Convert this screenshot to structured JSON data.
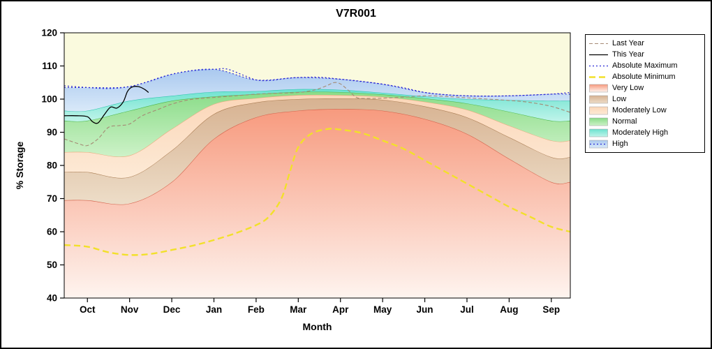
{
  "figure": {
    "border_color": "#000000",
    "background": "#ffffff"
  },
  "chart_data": {
    "type": "area",
    "title": "V7R001",
    "xlabel": "Month",
    "ylabel": "% Storage",
    "ylim": [
      40,
      120
    ],
    "yticks": [
      40,
      50,
      60,
      70,
      80,
      90,
      100,
      110,
      120
    ],
    "x_range": [
      -0.55,
      11.45
    ],
    "categories": [
      "Oct",
      "Nov",
      "Dec",
      "Jan",
      "Feb",
      "Mar",
      "Apr",
      "May",
      "Jun",
      "Jul",
      "Aug",
      "Sep"
    ],
    "plot_background": "#fafade",
    "grid": false,
    "legend_position": "outside-top-right",
    "bands": [
      {
        "label": "Very Low",
        "fill_top": "#f79a7e",
        "fill_bottom": "#fef4ef",
        "line_color": "#d4614a",
        "line_dash": "",
        "top": [
          69.5,
          68.5,
          75,
          88,
          94.5,
          96.5,
          97,
          96.5,
          94,
          89.5,
          82,
          75
        ]
      },
      {
        "label": "Low",
        "fill_top": "#d7b291",
        "fill_bottom": "#edddc8",
        "line_color": "#a97c52",
        "line_dash": "",
        "top": [
          78,
          76.5,
          84.5,
          95.5,
          99,
          100,
          100.2,
          99.8,
          97.8,
          94.5,
          88.5,
          82.5
        ]
      },
      {
        "label": "Moderately Low",
        "fill_top": "#fbd6b8",
        "fill_bottom": "#fdead6",
        "line_color": "#eba97c",
        "line_dash": "",
        "top": [
          84,
          83,
          91,
          98.5,
          100.3,
          101.2,
          101.2,
          100.7,
          99.2,
          96.8,
          92,
          87.5
        ]
      },
      {
        "label": "Normal",
        "fill_top": "#8adc88",
        "fill_bottom": "#cdf2c8",
        "line_color": "#4cb84c",
        "line_dash": "",
        "top": [
          93.5,
          96.5,
          99.5,
          100.8,
          101.5,
          102.2,
          102.1,
          101.4,
          100.2,
          98.7,
          96.2,
          93.5
        ]
      },
      {
        "label": "Moderately High",
        "fill_top": "#6ce2cf",
        "fill_bottom": "#c0f4ea",
        "line_color": "#2ec4b0",
        "line_dash": "",
        "top": [
          96.5,
          99.5,
          101,
          102.2,
          102.4,
          103,
          102.8,
          101.9,
          100.8,
          100,
          99.7,
          99.5
        ]
      },
      {
        "label": "High",
        "fill_top": "#aac9ef",
        "fill_bottom": "#d9e9f9",
        "line_color": "#2929d6",
        "line_dash": "2 3",
        "top": [
          103.5,
          103.8,
          107.5,
          109,
          105.8,
          106.5,
          106,
          104.5,
          102,
          101,
          101,
          101.5
        ]
      }
    ],
    "lines": [
      {
        "label": "Last Year",
        "color": "#a58a74",
        "dash": "5 3",
        "width": 1.1,
        "x": [
          -0.55,
          -0.2,
          0,
          0.25,
          0.5,
          0.75,
          1,
          1.3,
          1.7,
          2,
          2.4,
          2.8,
          3,
          3.5,
          4,
          4.5,
          5,
          5.4,
          5.7,
          5.85,
          6,
          6.2,
          6.4,
          6.7,
          7,
          7.5,
          8,
          8.5,
          9,
          9.5,
          10,
          10.5,
          11,
          11.45
        ],
        "y": [
          88,
          86.5,
          86,
          88,
          91.5,
          92,
          92.5,
          95,
          97,
          98.5,
          99.8,
          100.3,
          100.5,
          101,
          101.5,
          101.8,
          102,
          102.8,
          104.2,
          105,
          104.6,
          102.5,
          100.4,
          100.2,
          100.3,
          100.6,
          101,
          100.8,
          100.4,
          100,
          99.6,
          99,
          97.8,
          96
        ]
      },
      {
        "label": "This Year",
        "color": "#000000",
        "dash": "",
        "width": 1.3,
        "x": [
          -0.55,
          -0.25,
          0,
          0.12,
          0.25,
          0.4,
          0.55,
          0.7,
          0.85,
          0.95,
          1.05,
          1.2,
          1.35,
          1.45
        ],
        "y": [
          95,
          95,
          94.7,
          93.2,
          92.8,
          95.3,
          97.6,
          97.3,
          99.2,
          102.3,
          103.6,
          103.8,
          103,
          102
        ]
      },
      {
        "label": "Absolute Maximum",
        "color": "#2929d6",
        "dash": "2 3",
        "width": 1.3,
        "x": [
          -0.55,
          0,
          0.5,
          1,
          1.5,
          2,
          2.5,
          3,
          3.3,
          3.7,
          4,
          4.3,
          4.7,
          5,
          5.5,
          6,
          6.5,
          7,
          7.5,
          8,
          8.5,
          9,
          9.5,
          10,
          10.5,
          11,
          11.45
        ],
        "y": [
          104,
          103.5,
          103.2,
          103.8,
          105.5,
          107.5,
          108.6,
          109,
          109.1,
          107.2,
          105.8,
          105.6,
          106.2,
          106.5,
          106.6,
          106,
          105.3,
          104.5,
          103.4,
          102,
          101.3,
          101,
          100.9,
          101,
          101.2,
          101.5,
          102
        ]
      },
      {
        "label": "Absolute Minimum",
        "color": "#f2e02a",
        "dash": "9 5",
        "width": 2.4,
        "x": [
          -0.55,
          0,
          0.5,
          1,
          1.5,
          2,
          2.5,
          3,
          3.5,
          4,
          4.3,
          4.6,
          4.8,
          5,
          5.3,
          5.7,
          6,
          6.5,
          7,
          7.5,
          8,
          8.5,
          9,
          9.5,
          10,
          10.5,
          11,
          11.45
        ],
        "y": [
          56,
          55.5,
          53.8,
          53,
          53.3,
          54.5,
          55.8,
          57.5,
          59.5,
          62,
          64.5,
          70,
          78,
          85.5,
          89.5,
          91,
          90.8,
          89.8,
          87.5,
          85,
          81.5,
          78,
          74.5,
          71,
          67.5,
          64.5,
          61.5,
          60
        ]
      }
    ],
    "legend": {
      "entries": [
        {
          "label": "Last Year",
          "type": "line",
          "color": "#a58a74",
          "dash": "5 3",
          "width": 1.1
        },
        {
          "label": "This Year",
          "type": "line",
          "color": "#000000",
          "dash": "",
          "width": 1.3
        },
        {
          "label": "Absolute Maximum",
          "type": "line",
          "color": "#2929d6",
          "dash": "2 3",
          "width": 1.3
        },
        {
          "label": "Absolute Minimum",
          "type": "line",
          "color": "#f2e02a",
          "dash": "9 5",
          "width": 2.4
        },
        {
          "label": "Very Low",
          "type": "fill",
          "fill_top": "#f79a7e",
          "fill_bottom": "#fef4ef",
          "line_color": "",
          "line_dash": ""
        },
        {
          "label": "Low",
          "type": "fill",
          "fill_top": "#d7b291",
          "fill_bottom": "#edddc8",
          "line_color": "",
          "line_dash": ""
        },
        {
          "label": "Moderately Low",
          "type": "fill",
          "fill_top": "#fbd6b8",
          "fill_bottom": "#fdead6",
          "line_color": "",
          "line_dash": ""
        },
        {
          "label": "Normal",
          "type": "fill",
          "fill_top": "#8adc88",
          "fill_bottom": "#cdf2c8",
          "line_color": "",
          "line_dash": ""
        },
        {
          "label": "Moderately High",
          "type": "fill",
          "fill_top": "#6ce2cf",
          "fill_bottom": "#c0f4ea",
          "line_color": "",
          "line_dash": ""
        },
        {
          "label": "High",
          "type": "fill",
          "fill_top": "#aac9ef",
          "fill_bottom": "#d9e9f9",
          "line_color": "#2929d6",
          "line_dash": "2 3"
        }
      ]
    }
  }
}
